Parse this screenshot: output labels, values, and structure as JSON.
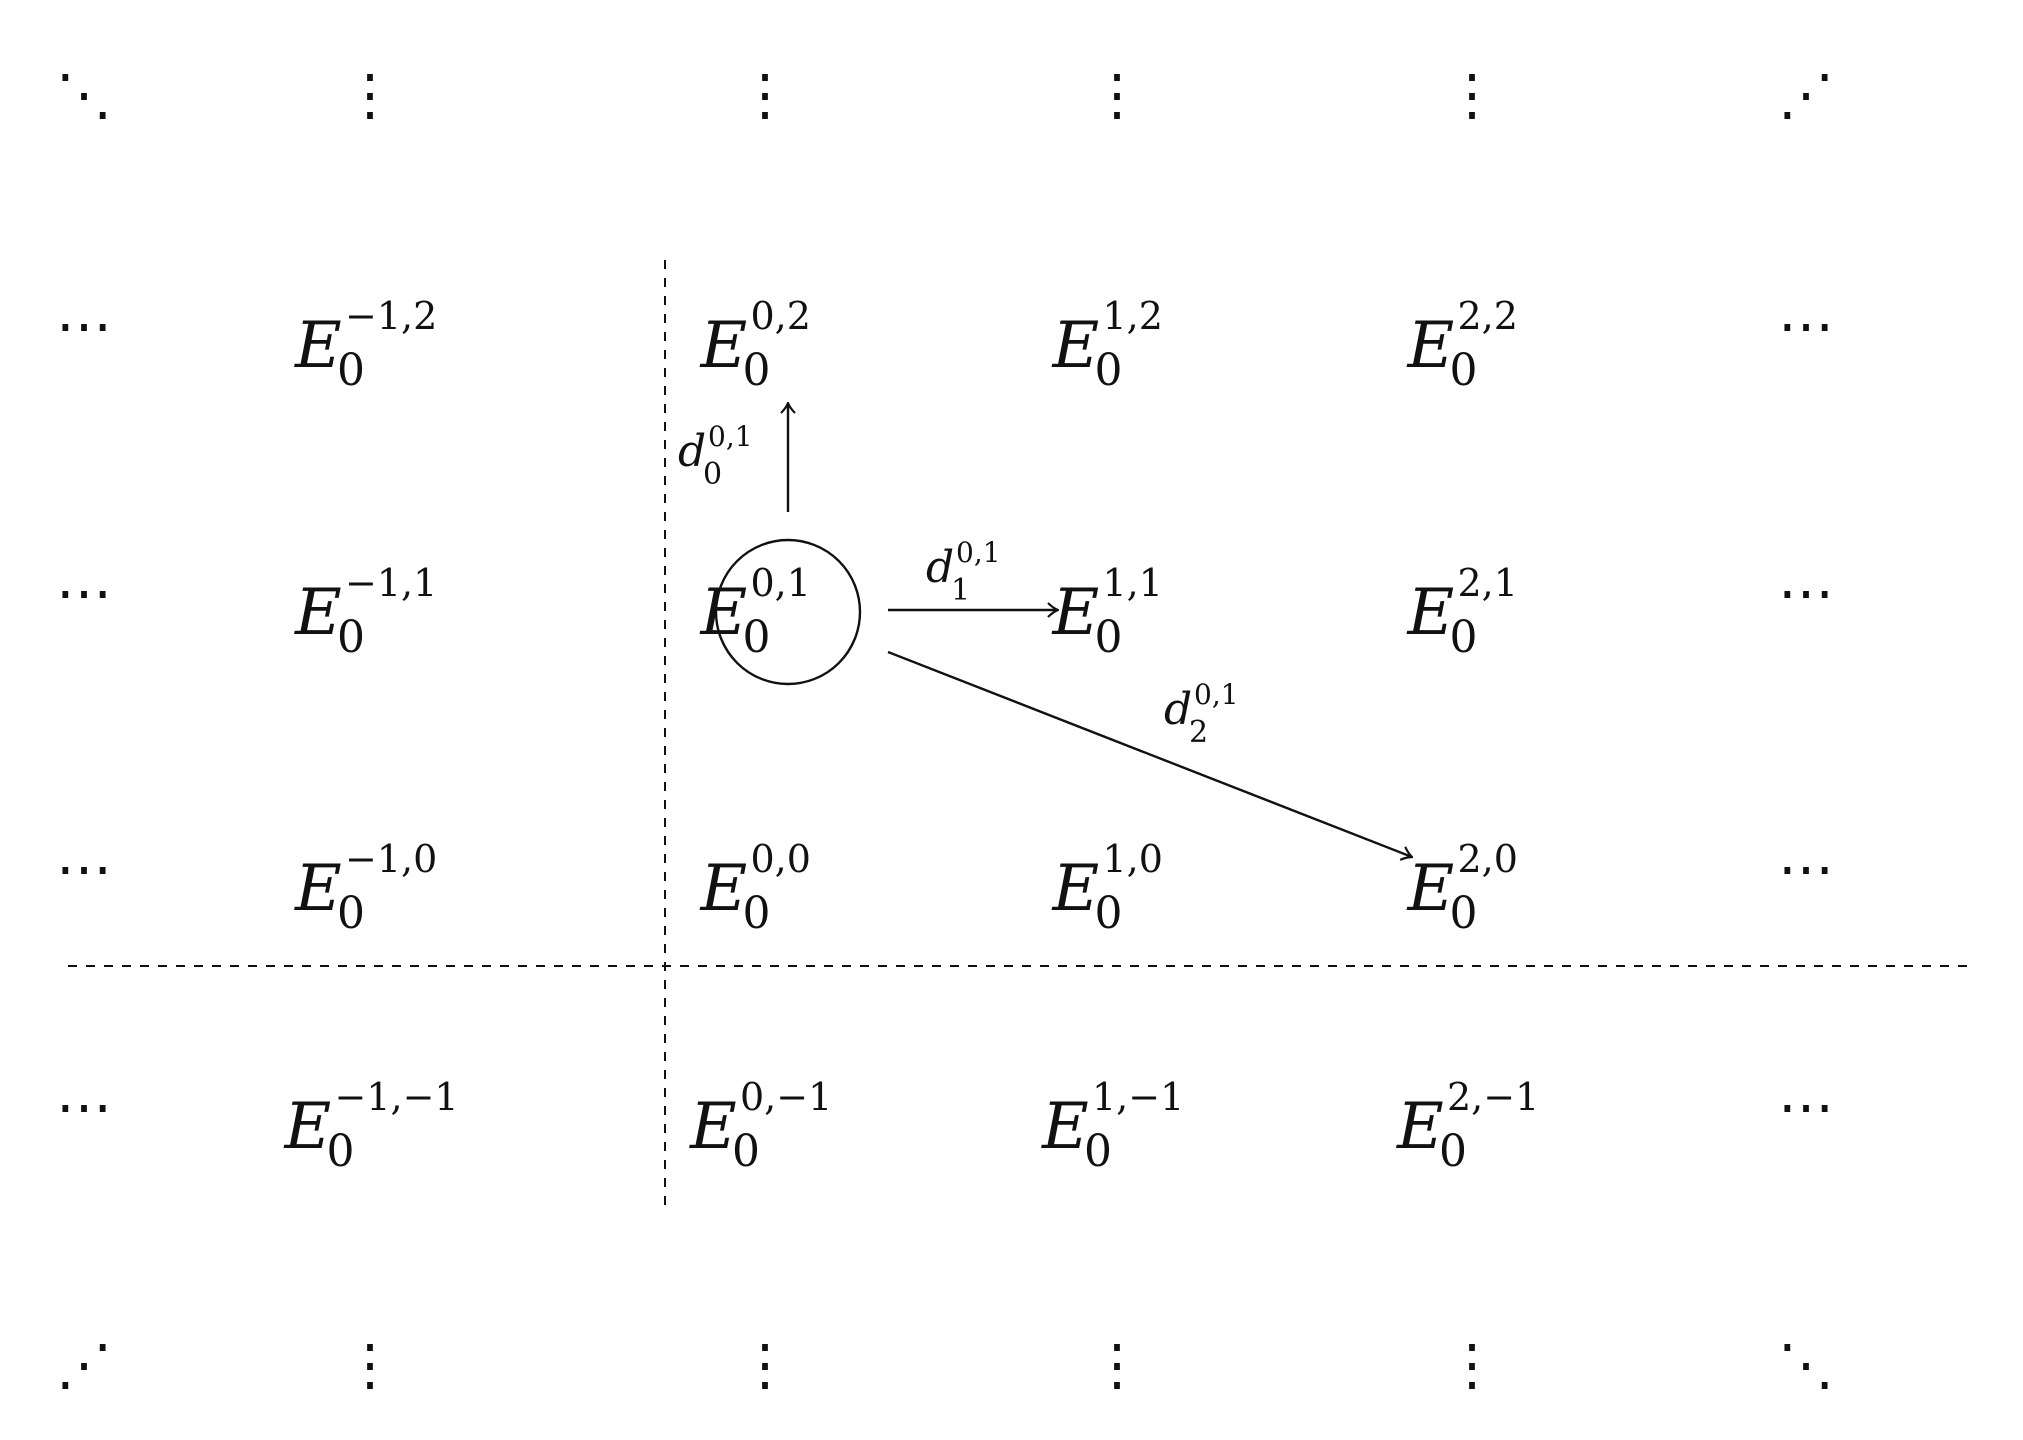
{
  "diagram": {
    "symbol": "E",
    "page": "0",
    "columns": [
      -1,
      0,
      1,
      2
    ],
    "rows": [
      2,
      1,
      0,
      -1
    ],
    "highlighted": {
      "p": 0,
      "q": 1
    },
    "ellipsis_horizontal": "⋯",
    "ellipsis_vertical": "⋮",
    "ellipsis_diag_down": "⋱",
    "ellipsis_diag_up": "⋰",
    "differentials": [
      {
        "symbol": "d",
        "sub": "0",
        "sup": "0,1",
        "from": [
          0,
          1
        ],
        "to": [
          0,
          2
        ]
      },
      {
        "symbol": "d",
        "sub": "1",
        "sup": "0,1",
        "from": [
          0,
          1
        ],
        "to": [
          1,
          1
        ]
      },
      {
        "symbol": "d",
        "sub": "2",
        "sup": "0,1",
        "from": [
          0,
          1
        ],
        "to": [
          2,
          0
        ]
      }
    ],
    "line_color": "#111111"
  }
}
